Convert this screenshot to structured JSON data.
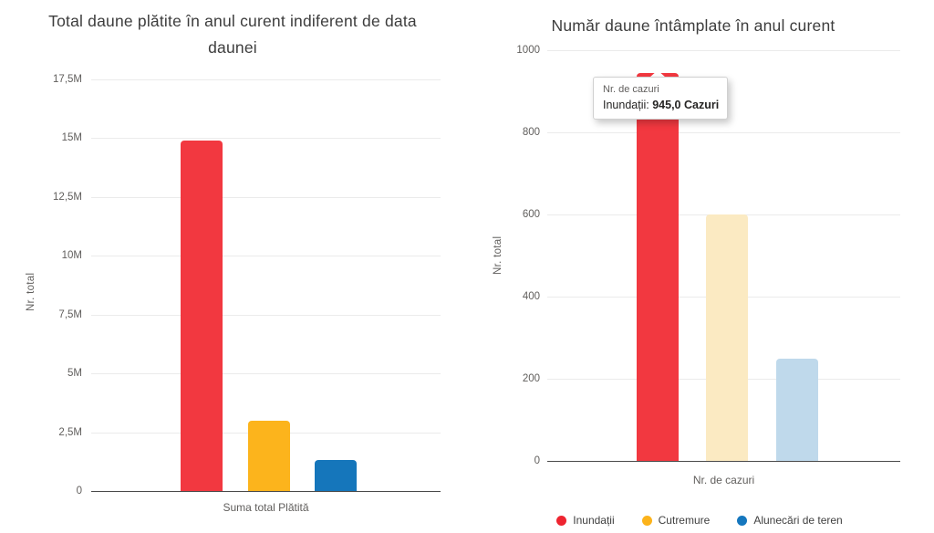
{
  "charts": {
    "left": {
      "title": "Total daune plătite în anul curent indiferent de data daunei",
      "y_axis_title": "Nr. total",
      "x_axis_label": "Suma total Plătită"
    },
    "right": {
      "title": "Număr daune întâmplate în anul curent",
      "y_axis_title": "Nr. total",
      "x_axis_label": "Nr. de cazuri",
      "tooltip": {
        "header": "Nr. de cazuri",
        "series_label": "Inundații:",
        "value": "945,0 Cazuri"
      },
      "legend": [
        {
          "label": "Inundații",
          "color": "#ee2430"
        },
        {
          "label": "Cutremure",
          "color": "#fcb31b"
        },
        {
          "label": "Alunecări de teren",
          "color": "#1577be"
        }
      ]
    }
  },
  "chart_data": [
    {
      "type": "bar",
      "title": "Total daune plătite în anul curent indiferent de data daunei",
      "xlabel": "Suma total Plătită",
      "ylabel": "Nr. total",
      "categories": [
        "Inundații",
        "Cutremure",
        "Alunecări de teren"
      ],
      "values": [
        14900000,
        3000000,
        1300000
      ],
      "ylim": [
        0,
        17500000
      ],
      "ytick_step": 2500000,
      "ytick_labels_display": [
        "17,5M",
        "15M",
        "12,5M",
        "10M",
        "7,5M",
        "5M",
        "2,5M",
        "0"
      ],
      "grid": true,
      "legend_position": "none",
      "bar_colors": [
        "#f23840",
        "#fcb41c",
        "#1576bb"
      ]
    },
    {
      "type": "bar",
      "title": "Număr daune întâmplate în anul curent",
      "xlabel": "Nr. de cazuri",
      "ylabel": "Nr. total",
      "categories": [
        "Inundații",
        "Cutremure",
        "Alunecări de teren"
      ],
      "values": [
        945,
        600,
        250
      ],
      "ylim": [
        0,
        1000
      ],
      "ytick_step": 200,
      "ytick_labels_display": [
        "1000",
        "800",
        "600",
        "400",
        "200",
        "0"
      ],
      "grid": true,
      "legend_position": "bottom",
      "highlighted_series": "Inundații",
      "dimmed": [
        false,
        true,
        true
      ],
      "bar_colors": [
        "#f23840",
        "#fbeac2",
        "#bfd9eb"
      ]
    }
  ]
}
